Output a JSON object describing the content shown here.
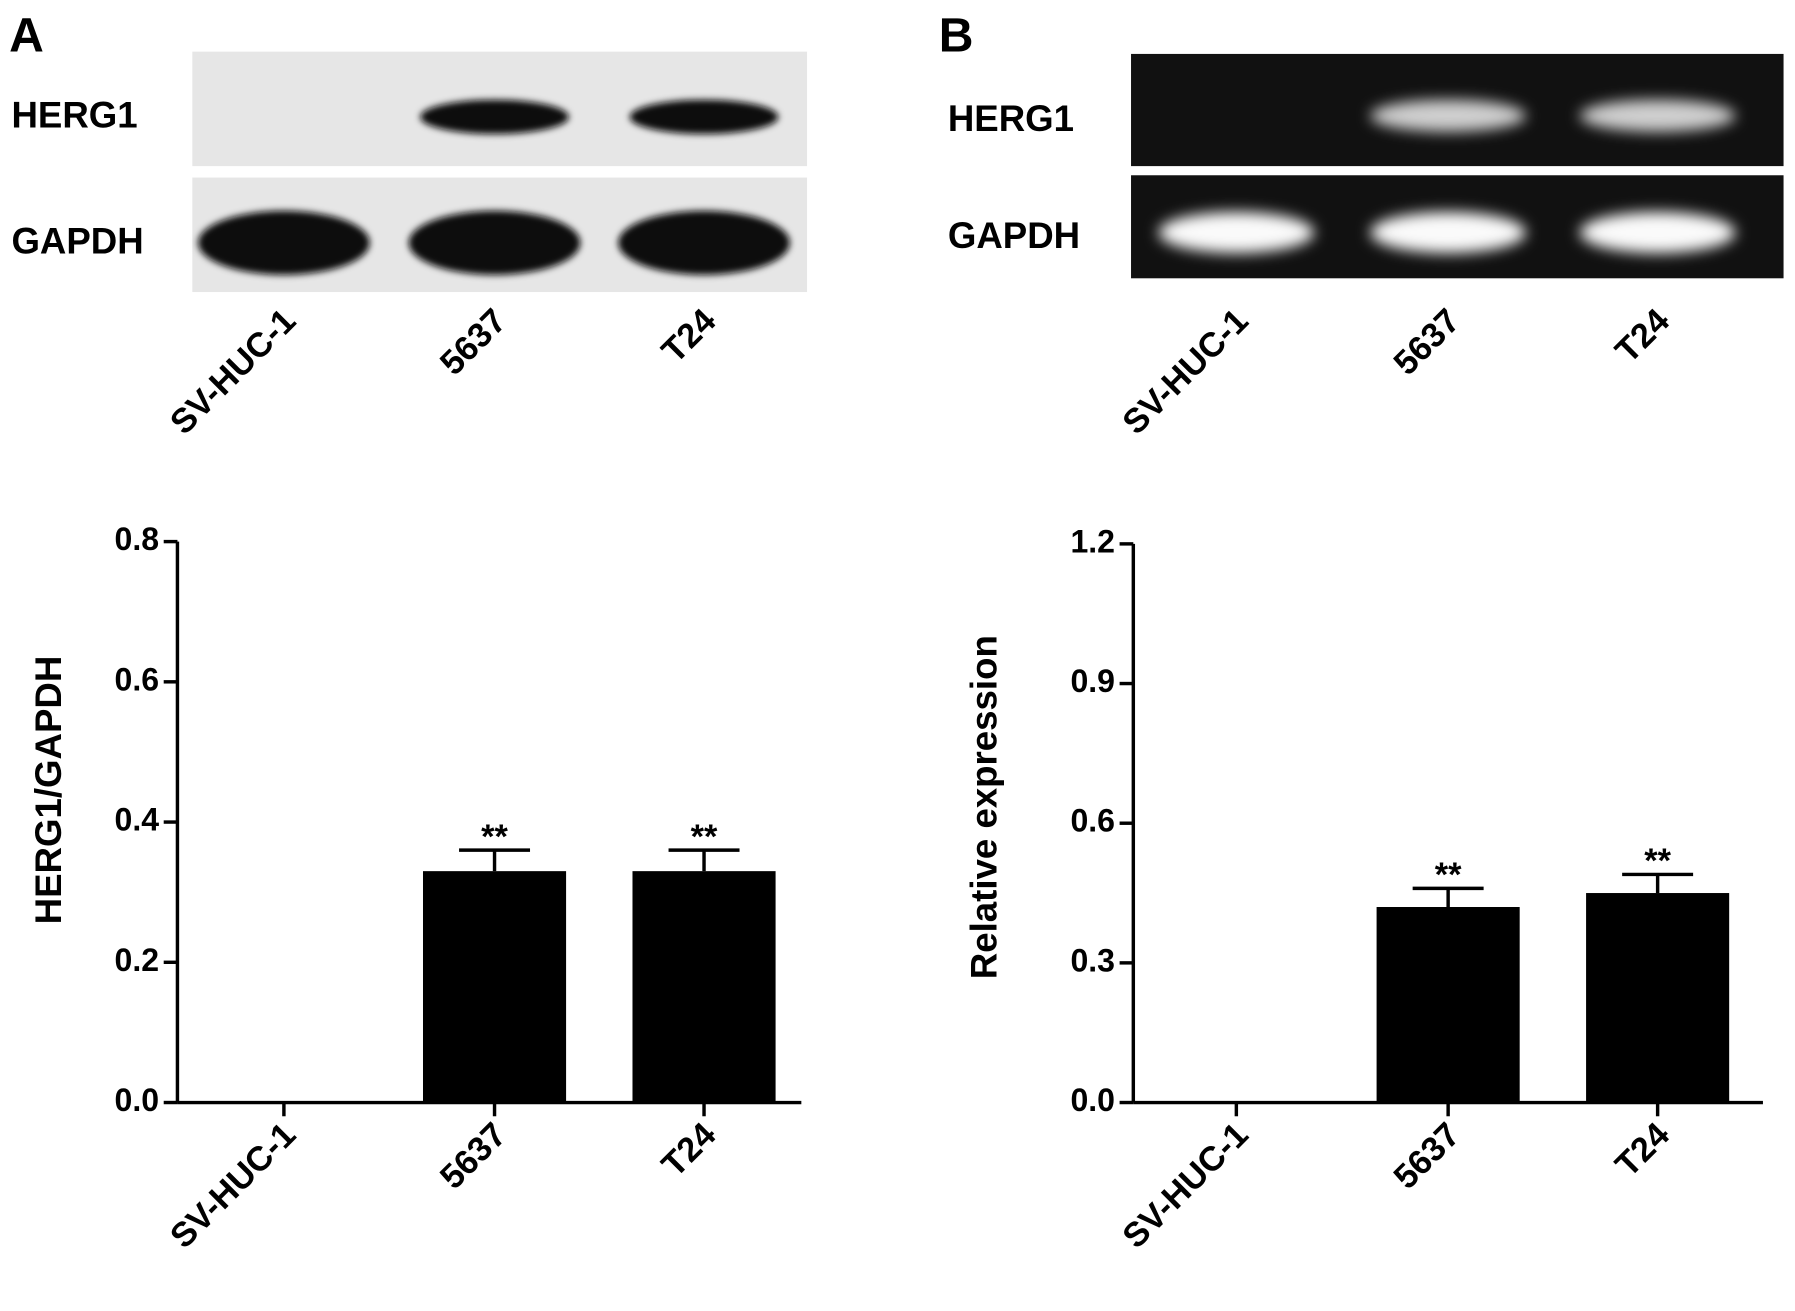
{
  "chart_data": [
    {
      "type": "bar",
      "panel_label": "A",
      "y_label": "HERG1/GAPDH",
      "blot": {
        "rows": [
          "HERG1",
          "GAPDH"
        ],
        "lanes": [
          "SV-HUC-1",
          "5637",
          "T24"
        ],
        "style": "western"
      },
      "categories": [
        "SV-HUC-1",
        "5637",
        "T24"
      ],
      "values": [
        0,
        0.33,
        0.33
      ],
      "errors": [
        null,
        0.03,
        0.03
      ],
      "annotations": [
        null,
        "**",
        "**"
      ],
      "color": "#000000",
      "ylim": [
        0,
        0.8
      ],
      "yticks": [
        {
          "value": 0,
          "label": "0.0"
        },
        0.2,
        0.4,
        0.6,
        0.8
      ]
    },
    {
      "type": "bar",
      "panel_label": "B",
      "y_label": "Relative expression",
      "blot": {
        "rows": [
          "HERG1",
          "GAPDH"
        ],
        "lanes": [
          "SV-HUC-1",
          "5637",
          "T24"
        ],
        "style": "gel"
      },
      "categories": [
        "SV-HUC-1",
        "5637",
        "T24"
      ],
      "values": [
        0,
        0.42,
        0.45
      ],
      "errors": [
        null,
        0.04,
        0.04
      ],
      "annotations": [
        null,
        "**",
        "**"
      ],
      "color": "#000000",
      "ylim": [
        0,
        1.2
      ],
      "yticks": [
        {
          "value": 0,
          "label": "0.0"
        },
        0.3,
        0.6,
        0.9,
        1.2
      ]
    }
  ]
}
